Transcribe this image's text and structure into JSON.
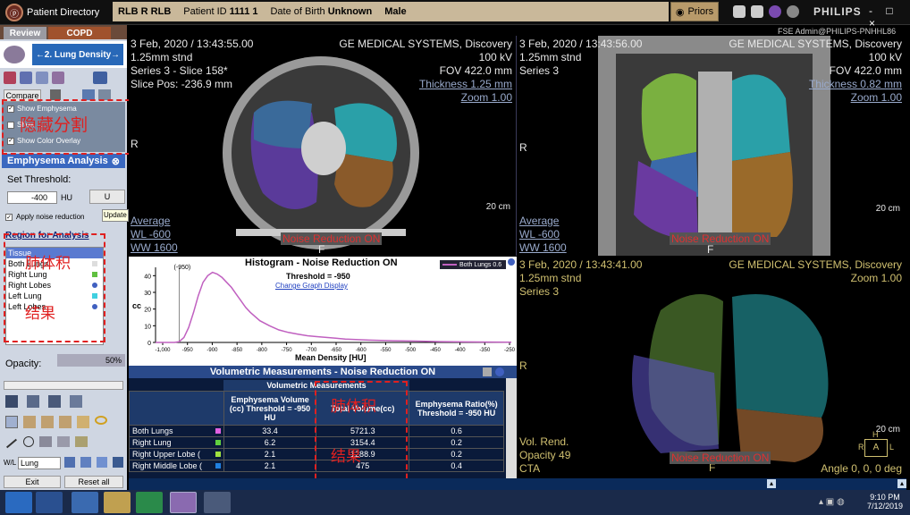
{
  "titlebar": {
    "app_title": "Patient Directory",
    "patient_name": "RLB R RLB",
    "patient_id_label": "Patient ID",
    "patient_id": "1111 1",
    "dob_label": "Date of Birth",
    "dob": "Unknown",
    "sex": "Male",
    "priors": "Priors",
    "brand": "PHILIPS",
    "window_controls": "- □ ×",
    "user": "FSE Admin@PHILIPS-PNHHL86"
  },
  "left": {
    "tabs": [
      "Review",
      "COPD"
    ],
    "step": "2. Lung Density",
    "compare": "Compare",
    "checks": [
      {
        "label": "Show Emphysema",
        "checked": true
      },
      {
        "label": "Show ...",
        "checked": false
      },
      {
        "label": "Show Color Overlay",
        "checked": true
      }
    ],
    "anno_hide": "隐藏分割",
    "emph_title": "Emphysema Analysis",
    "set_threshold": "Set Threshold:",
    "threshold_value": "-400",
    "hu": "HU",
    "update": "U",
    "update_tip": "Update",
    "apply_noise": "Apply noise reduction",
    "region_title": "Region for Analysis",
    "regions": [
      {
        "name": "Tissue",
        "color": "#ffffff"
      },
      {
        "name": "Both Lungs",
        "color": "#ffffff"
      },
      {
        "name": "Right Lung",
        "color": "#60c040"
      },
      {
        "name": "Right Lobes",
        "color": "#ffffff"
      },
      {
        "name": "Left Lung",
        "color": "#40d0e0"
      },
      {
        "name": "Left Lobes",
        "color": "#ffffff"
      }
    ],
    "anno_lung": "肺体积",
    "anno_result": "结果",
    "opacity_label": "Opacity:",
    "opacity_value": "50%",
    "wl_value": "Lung",
    "exit": "Exit",
    "reset": "Reset all"
  },
  "vp1": {
    "date": "3 Feb, 2020 / 13:43:55.00",
    "thick": "1.25mm stnd",
    "series": "Series 3 - Slice 158*",
    "slicepos": "Slice Pos: -236.9 mm",
    "mfr": "GE MEDICAL SYSTEMS, Discovery",
    "kv": "100 kV",
    "fov": "FOV 422.0 mm",
    "thickness": "Thickness 1.25 mm",
    "zoom": "Zoom 1.00",
    "r": "R",
    "f": "F",
    "scale": "20 cm",
    "avg": "Average",
    "wl": "WL  -600",
    "ww": "WW  1600",
    "noise": "Noise Reduction ON"
  },
  "vp2": {
    "date": "3 Feb, 2020 / 13:43:56.00",
    "thick": "1.25mm stnd",
    "series": "Series 3",
    "mfr": "GE MEDICAL SYSTEMS, Discovery",
    "kv": "100 kV",
    "fov": "FOV 422.0 mm",
    "thickness": "Thickness 0.82 mm",
    "zoom": "Zoom 1.00",
    "r": "R",
    "f": "F",
    "scale": "20 cm",
    "avg": "Average",
    "wl": "WL  -600",
    "ww": "WW  1600",
    "noise": "Noise Reduction ON"
  },
  "vp4": {
    "date": "3 Feb, 2020 / 13:43:41.00",
    "thick": "1.25mm stnd",
    "series": "Series 3",
    "mfr": "GE MEDICAL SYSTEMS, Discovery",
    "zoom": "Zoom 1.00",
    "r": "R",
    "f": "F",
    "scale": "20 cm",
    "vr": "Vol. Rend.",
    "opacity": "Opacity 49",
    "cta": "CTA",
    "noise": "Noise Reduction ON",
    "angle": "Angle 0, 0, 0 deg",
    "orient_h": "H",
    "orient_r": "R",
    "orient_a": "A",
    "orient_l": "L"
  },
  "histogram": {
    "title": "Histogram - Noise Reduction ON",
    "threshold": "Threshold = -950",
    "change": "Change Graph Display",
    "legend": "Both Lungs 0.6",
    "marker": "(-950)",
    "ylabel": "cc",
    "xlabel": "Mean Density [HU]",
    "yticks": [
      "40",
      "30",
      "20",
      "10",
      "0"
    ],
    "xticks": [
      "-1,000",
      "-950",
      "-900",
      "-850",
      "-800",
      "-750",
      "-700",
      "-650",
      "-600",
      "-550",
      "-500",
      "-450",
      "-400",
      "-350",
      "-250"
    ]
  },
  "chart_data": {
    "type": "line",
    "title": "Histogram - Noise Reduction ON",
    "xlabel": "Mean Density [HU]",
    "ylabel": "cc",
    "ylim": [
      0,
      45
    ],
    "xlim": [
      -1000,
      -250
    ],
    "series": [
      {
        "name": "Both Lungs 0.6",
        "x": [
          -1000,
          -960,
          -950,
          -940,
          -930,
          -920,
          -910,
          -900,
          -890,
          -880,
          -870,
          -860,
          -850,
          -840,
          -830,
          -820,
          -810,
          -800,
          -780,
          -760,
          -740,
          -720,
          -700,
          -680,
          -660,
          -640,
          -620,
          -600,
          -550,
          -500,
          -450,
          -400,
          -350,
          -250
        ],
        "y": [
          0,
          0,
          0.5,
          3,
          9,
          18,
          28,
          36,
          40,
          42,
          41,
          39,
          36,
          33,
          29,
          25,
          21,
          18,
          13,
          10,
          7.5,
          6,
          5,
          4,
          3.5,
          3,
          2.5,
          2,
          1.4,
          1,
          0.8,
          0.5,
          0.3,
          0.1
        ]
      }
    ]
  },
  "volumetric": {
    "title": "Volumetric Measurements - Noise Reduction ON",
    "group": "Volumetric Measurements",
    "cols": [
      "Emphysema Volume (cc) Threshold = -950 HU",
      "Total Volume(cc)",
      "Emphysema Ratio(%) Threshold = -950 HU"
    ],
    "rows": [
      {
        "name": "Both Lungs",
        "color": "#e060e0",
        "ev": "33.4",
        "tv": "5721.3",
        "er": "0.6"
      },
      {
        "name": "Right Lung",
        "color": "#60d040",
        "ev": "6.2",
        "tv": "3154.4",
        "er": "0.2"
      },
      {
        "name": "Right Upper Lobe (",
        "color": "#a0e040",
        "ev": "2.1",
        "tv": "1288.9",
        "er": "0.2"
      },
      {
        "name": "Right Middle Lobe (",
        "color": "#2080e0",
        "ev": "2.1",
        "tv": "475",
        "er": "0.4"
      }
    ],
    "anno_lung": "肺体积",
    "anno_result": "结果"
  },
  "taskbar": {
    "time": "9:10 PM",
    "date": "7/12/2019"
  }
}
